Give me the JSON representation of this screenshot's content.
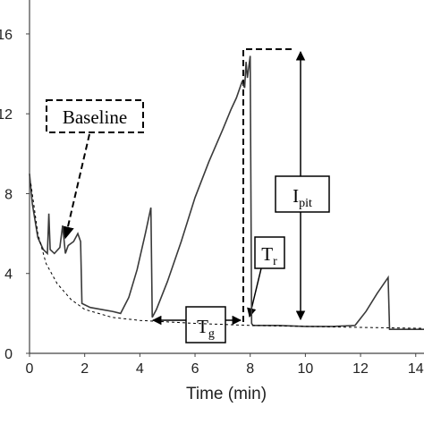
{
  "chart_data": {
    "type": "line",
    "xlabel": "Time (min)",
    "xlim": [
      0,
      14.3
    ],
    "ylim": [
      0,
      17.7
    ],
    "xticks": [
      0,
      2,
      4,
      6,
      8,
      10,
      12,
      14
    ],
    "yticks": [
      0,
      4,
      8,
      12,
      16
    ],
    "series": [
      {
        "color": "#3a3a3a",
        "style": "solid",
        "x": [
          0,
          0.1,
          0.3,
          0.5,
          0.65,
          0.7,
          0.75,
          0.9,
          1.1,
          1.2,
          1.3,
          1.4,
          1.6,
          1.75,
          1.85,
          1.9,
          2.2,
          2.6,
          3.0,
          3.3,
          3.6,
          3.9,
          4.2,
          4.4,
          4.45,
          4.6,
          5.0,
          5.5,
          6.0,
          6.5,
          7.0,
          7.3,
          7.5,
          7.7,
          7.8,
          7.85,
          7.9,
          8.0,
          8.05,
          8.1,
          9,
          10,
          11,
          11.8,
          12.2,
          12.6,
          12.9,
          13.0,
          13.05,
          13.5,
          14.3
        ],
        "values": [
          9.0,
          7.5,
          5.8,
          5.2,
          5.0,
          7.0,
          5.2,
          5.0,
          5.3,
          6.4,
          5.0,
          5.4,
          5.6,
          6.0,
          5.6,
          2.5,
          2.3,
          2.2,
          2.1,
          2.0,
          2.8,
          4.2,
          6.0,
          7.3,
          1.8,
          2.2,
          3.6,
          5.6,
          7.8,
          9.6,
          11.2,
          12.2,
          12.8,
          13.6,
          13.3,
          14.6,
          13.8,
          14.9,
          1.5,
          1.4,
          1.4,
          1.35,
          1.35,
          1.4,
          2.1,
          3.0,
          3.6,
          3.8,
          1.2,
          1.2,
          1.2
        ]
      },
      {
        "color": "#000000",
        "style": "dashed",
        "x": [
          0.05,
          0.3,
          0.6,
          1,
          1.5,
          2,
          3,
          4,
          6,
          8,
          10,
          12,
          14.3
        ],
        "values": [
          8.5,
          6,
          4.5,
          3.5,
          2.7,
          2.2,
          1.8,
          1.65,
          1.5,
          1.4,
          1.35,
          1.3,
          1.25
        ]
      }
    ],
    "annotations": [
      {
        "text": "Baseline"
      },
      {
        "text": "I",
        "sub": "pit"
      },
      {
        "text": "T",
        "sub": "r"
      },
      {
        "text": "T",
        "sub": "g"
      }
    ]
  }
}
